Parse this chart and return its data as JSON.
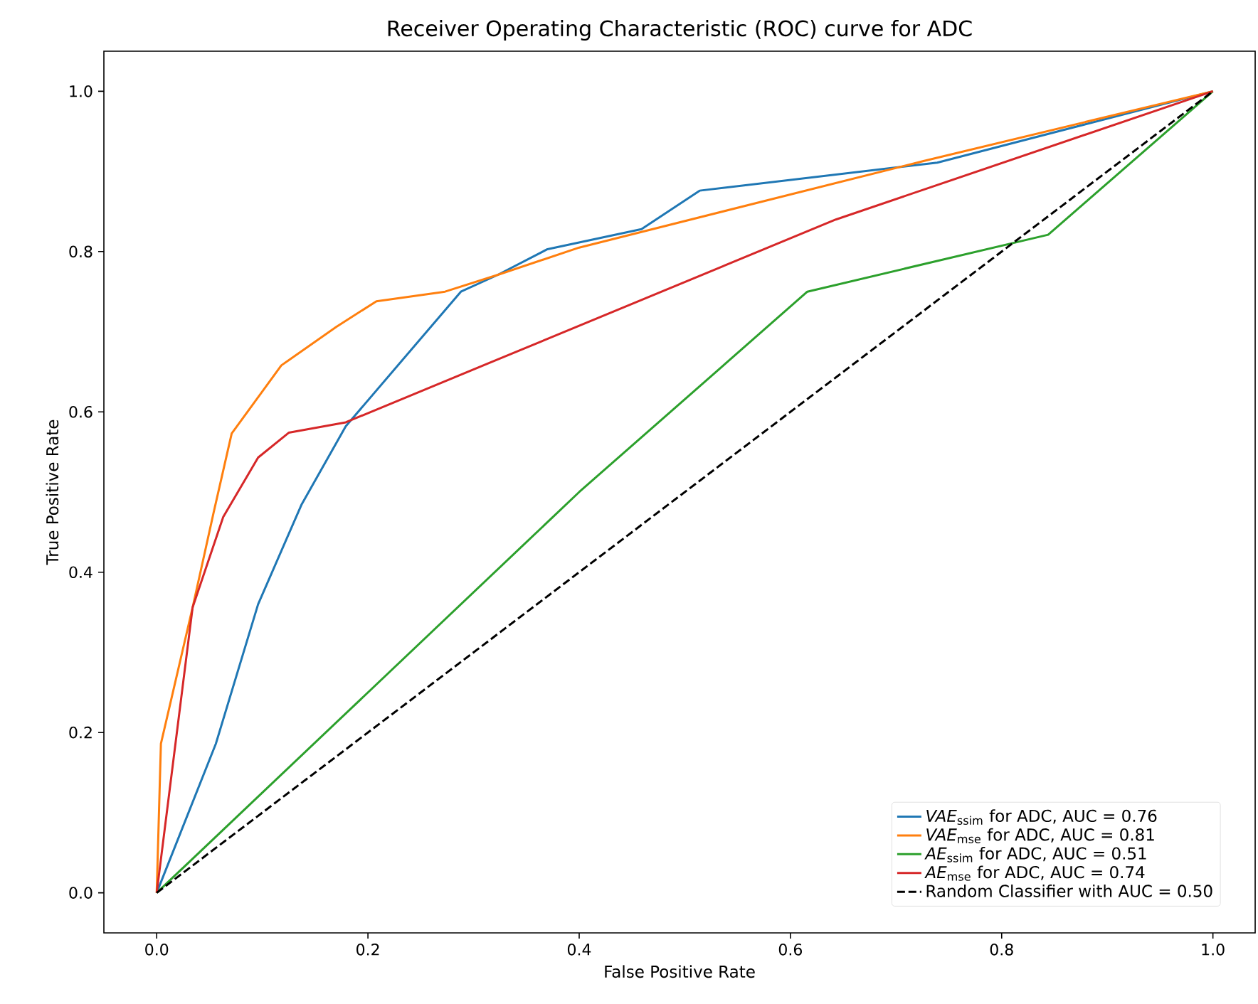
{
  "chart_data": {
    "type": "line",
    "title": "Receiver Operating Characteristic (ROC) curve for ADC",
    "xlabel": "False Positive Rate",
    "ylabel": "True Positive Rate",
    "xlim": [
      -0.05,
      1.04
    ],
    "ylim": [
      -0.05,
      1.05
    ],
    "xticks": [
      {
        "value": 0,
        "label": "0.0"
      },
      {
        "value": 0.2,
        "label": "0.2"
      },
      {
        "value": 0.4,
        "label": "0.4"
      },
      {
        "value": 0.6,
        "label": "0.6"
      },
      {
        "value": 0.8,
        "label": "0.8"
      },
      {
        "value": 1,
        "label": "1.0"
      }
    ],
    "yticks": [
      {
        "value": 0,
        "label": "0.0"
      },
      {
        "value": 0.2,
        "label": "0.2"
      },
      {
        "value": 0.4,
        "label": "0.4"
      },
      {
        "value": 0.6,
        "label": "0.6"
      },
      {
        "value": 0.8,
        "label": "0.8"
      },
      {
        "value": 1,
        "label": "1.0"
      }
    ],
    "legend": "bottom right",
    "series": [
      {
        "name": "*VAE*$_{ssim}$ for ADC, AUC = 0.76",
        "color": "#1f77b4",
        "x": [
          0,
          0.056,
          0.096,
          0.137,
          0.179,
          0.288,
          0.323,
          0.37,
          0.459,
          0.514,
          0.739,
          1
        ],
        "values": [
          0,
          0.186,
          0.36,
          0.484,
          0.582,
          0.75,
          0.771,
          0.803,
          0.828,
          0.876,
          0.911,
          1
        ]
      },
      {
        "name": "*VAE*$_{mse}$ for ADC, AUC = 0.81",
        "color": "#ff7f0e",
        "x": [
          0,
          0.004,
          0.034,
          0.054,
          0.071,
          0.118,
          0.17,
          0.208,
          0.273,
          0.323,
          0.4,
          0.726,
          1
        ],
        "values": [
          0,
          0.186,
          0.356,
          0.475,
          0.573,
          0.658,
          0.706,
          0.738,
          0.75,
          0.771,
          0.805,
          0.913,
          1
        ]
      },
      {
        "name": "*AE*$_{ssim}$ for  ADC, AUC = 0.51",
        "color": "#2ca02c",
        "x": [
          0,
          0.4,
          0.616,
          0.844,
          1
        ],
        "values": [
          0,
          0.5,
          0.75,
          0.821,
          1
        ]
      },
      {
        "name": "*AE*$_{mse}$ for ADC, AUC = 0.74",
        "color": "#d62728",
        "x": [
          0,
          0.034,
          0.063,
          0.096,
          0.125,
          0.179,
          0.643,
          1
        ],
        "values": [
          0,
          0.356,
          0.469,
          0.543,
          0.574,
          0.587,
          0.84,
          1
        ]
      },
      {
        "name": "Random Classifier with AUC = 0.50",
        "color": "#000000",
        "line_style": "dashed",
        "x": [
          0,
          1
        ],
        "values": [
          0,
          1
        ]
      }
    ]
  }
}
